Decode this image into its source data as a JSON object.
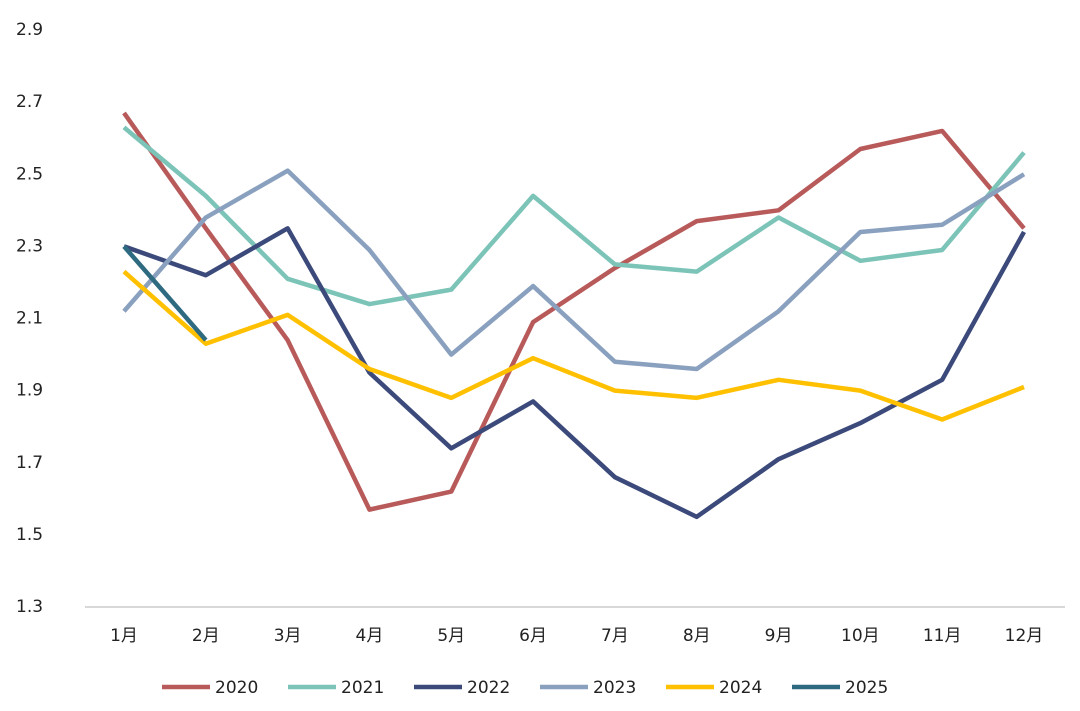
{
  "chart_data": {
    "type": "line",
    "categories": [
      "1月",
      "2月",
      "3月",
      "4月",
      "5月",
      "6月",
      "7月",
      "8月",
      "9月",
      "10月",
      "11月",
      "12月"
    ],
    "series": [
      {
        "name": "2020",
        "color": "#b85a5a",
        "values": [
          2.67,
          2.35,
          2.04,
          1.57,
          1.62,
          2.09,
          2.24,
          2.37,
          2.4,
          2.57,
          2.62,
          2.35
        ]
      },
      {
        "name": "2021",
        "color": "#7cc4b8",
        "values": [
          2.63,
          2.44,
          2.21,
          2.14,
          2.18,
          2.44,
          2.25,
          2.23,
          2.38,
          2.26,
          2.29,
          2.56
        ]
      },
      {
        "name": "2022",
        "color": "#3b4a7a",
        "values": [
          2.3,
          2.22,
          2.35,
          1.95,
          1.74,
          1.87,
          1.66,
          1.55,
          1.71,
          1.81,
          1.93,
          2.34
        ]
      },
      {
        "name": "2023",
        "color": "#8aa0bf",
        "values": [
          2.12,
          2.38,
          2.51,
          2.29,
          2.0,
          2.19,
          1.98,
          1.96,
          2.12,
          2.34,
          2.36,
          2.5
        ]
      },
      {
        "name": "2024",
        "color": "#ffc000",
        "values": [
          2.23,
          2.03,
          2.11,
          1.96,
          1.88,
          1.99,
          1.9,
          1.88,
          1.93,
          1.9,
          1.82,
          1.91
        ]
      },
      {
        "name": "2025",
        "color": "#2f6b80",
        "values": [
          2.3,
          2.04,
          null,
          null,
          null,
          null,
          null,
          null,
          null,
          null,
          null,
          null
        ]
      }
    ],
    "ylim": [
      1.3,
      2.9
    ],
    "yticks": [
      1.3,
      1.5,
      1.7,
      1.9,
      2.1,
      2.3,
      2.5,
      2.7,
      2.9
    ],
    "grid": false,
    "legend": "bottom"
  }
}
